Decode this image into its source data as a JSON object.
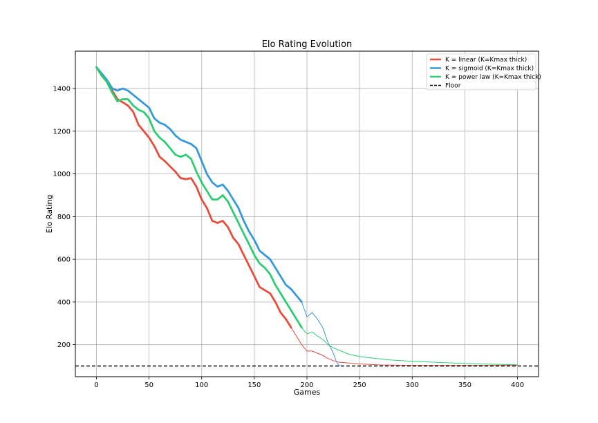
{
  "chart_data": {
    "type": "line",
    "title": "Elo Rating Evolution",
    "xlabel": "Games",
    "ylabel": "Elo Rating",
    "xlim": [
      -20,
      420
    ],
    "ylim": [
      50,
      1575
    ],
    "xticks": [
      0,
      50,
      100,
      150,
      200,
      250,
      300,
      350,
      400
    ],
    "yticks": [
      200,
      400,
      600,
      800,
      1000,
      1200,
      1400
    ],
    "grid": true,
    "legend_position": "top-right",
    "floor": {
      "name": "Floor",
      "value": 100,
      "color": "#000000",
      "style": "dashed"
    },
    "series": [
      {
        "name": "K = linear (K=Kmax thick)",
        "color": "#e74c3c",
        "thick_until": 185,
        "x": [
          0,
          5,
          10,
          15,
          20,
          25,
          30,
          35,
          40,
          45,
          50,
          55,
          60,
          65,
          70,
          75,
          80,
          85,
          90,
          95,
          100,
          105,
          110,
          115,
          120,
          125,
          130,
          135,
          140,
          145,
          150,
          155,
          160,
          165,
          170,
          175,
          180,
          185,
          190,
          195,
          200,
          205,
          210,
          215,
          220,
          225,
          230,
          240,
          250,
          270,
          300,
          330,
          360,
          400
        ],
        "values": [
          1500,
          1460,
          1440,
          1390,
          1350,
          1335,
          1320,
          1290,
          1230,
          1200,
          1170,
          1130,
          1080,
          1060,
          1035,
          1010,
          980,
          975,
          980,
          940,
          880,
          840,
          780,
          770,
          780,
          750,
          700,
          670,
          620,
          570,
          520,
          470,
          455,
          440,
          400,
          350,
          320,
          280,
          240,
          200,
          170,
          170,
          160,
          150,
          135,
          125,
          118,
          114,
          110,
          105,
          103,
          103,
          103,
          103
        ]
      },
      {
        "name": "K = sigmoid (K=Kmax thick)",
        "color": "#3498db",
        "thick_until": 195,
        "x": [
          0,
          5,
          10,
          15,
          20,
          25,
          30,
          35,
          40,
          45,
          50,
          55,
          60,
          65,
          70,
          75,
          80,
          85,
          90,
          95,
          100,
          105,
          110,
          115,
          120,
          125,
          130,
          135,
          140,
          145,
          150,
          155,
          160,
          165,
          170,
          175,
          180,
          185,
          190,
          195,
          200,
          205,
          210,
          215,
          220,
          225,
          228,
          230,
          232
        ],
        "values": [
          1500,
          1470,
          1440,
          1400,
          1390,
          1400,
          1390,
          1370,
          1350,
          1330,
          1310,
          1260,
          1240,
          1230,
          1210,
          1180,
          1160,
          1150,
          1140,
          1120,
          1060,
          1000,
          960,
          940,
          950,
          920,
          880,
          840,
          780,
          730,
          690,
          640,
          620,
          600,
          560,
          520,
          480,
          460,
          430,
          400,
          330,
          350,
          320,
          280,
          210,
          160,
          120,
          105,
          100
        ]
      },
      {
        "name": "K = power law (K=Kmax thick)",
        "color": "#2ecc71",
        "thick_until": 195,
        "x": [
          0,
          5,
          10,
          15,
          20,
          25,
          30,
          35,
          40,
          45,
          50,
          55,
          60,
          65,
          70,
          75,
          80,
          85,
          90,
          95,
          100,
          105,
          110,
          115,
          120,
          125,
          130,
          135,
          140,
          145,
          150,
          155,
          160,
          165,
          170,
          175,
          180,
          185,
          190,
          195,
          200,
          205,
          210,
          215,
          220,
          225,
          230,
          240,
          250,
          260,
          280,
          300,
          320,
          350,
          380,
          400
        ],
        "values": [
          1500,
          1460,
          1430,
          1380,
          1340,
          1350,
          1350,
          1320,
          1300,
          1290,
          1260,
          1200,
          1170,
          1150,
          1120,
          1090,
          1080,
          1090,
          1070,
          1010,
          960,
          920,
          880,
          880,
          900,
          870,
          820,
          770,
          720,
          670,
          620,
          580,
          560,
          530,
          480,
          440,
          400,
          360,
          320,
          280,
          250,
          260,
          240,
          225,
          200,
          185,
          175,
          155,
          145,
          138,
          128,
          122,
          118,
          112,
          108,
          106
        ]
      }
    ]
  }
}
